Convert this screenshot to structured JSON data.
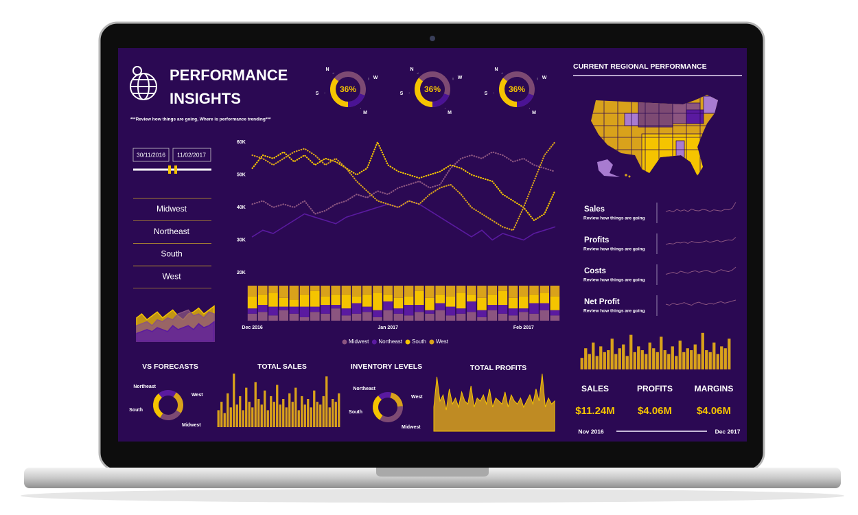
{
  "header": {
    "title_line1": "PERFORMANCE",
    "title_line2": "INSIGHTS",
    "subtitle": "***Review how things are going, Where is performance trending***"
  },
  "gauges": [
    {
      "label": "36%",
      "value": 36,
      "n": "N",
      "w": "W",
      "s": "S",
      "m": "M"
    },
    {
      "label": "36%",
      "value": 36,
      "n": "N",
      "w": "W",
      "s": "S",
      "m": "M"
    },
    {
      "label": "36%",
      "value": 36,
      "n": "N",
      "w": "W",
      "s": "S",
      "m": "M"
    }
  ],
  "date_range": {
    "start": "30/11/2016",
    "end": "11/02/2017"
  },
  "regions": [
    "Midwest",
    "Northeast",
    "South",
    "West"
  ],
  "mini_area": {
    "ylim": [
      0,
      100
    ],
    "series": [
      {
        "color": "#f5c400",
        "values": [
          60,
          70,
          55,
          65,
          75,
          60,
          70,
          80,
          65,
          55,
          70,
          75,
          85,
          70,
          80,
          90
        ]
      },
      {
        "color": "#8b5580",
        "values": [
          40,
          45,
          50,
          40,
          55,
          50,
          60,
          55,
          70,
          75,
          80,
          65,
          70,
          60,
          75,
          70
        ]
      },
      {
        "color": "#5a1aa0",
        "values": [
          20,
          25,
          30,
          25,
          35,
          30,
          25,
          40,
          30,
          35,
          40,
          30,
          45,
          35,
          40,
          50
        ]
      }
    ]
  },
  "trend_chart": {
    "type": "line",
    "categories": [
      "Dec 2016",
      null,
      null,
      null,
      null,
      null,
      null,
      null,
      null,
      null,
      null,
      null,
      null,
      "Jan 2017",
      null,
      null,
      null,
      null,
      null,
      null,
      null,
      null,
      null,
      null,
      null,
      null,
      "Feb 2017",
      null,
      null,
      null
    ],
    "ylim": [
      20000,
      60000
    ],
    "yticks": [
      {
        "value": 20000,
        "label": "20K"
      },
      {
        "value": 30000,
        "label": "30K"
      },
      {
        "value": 40000,
        "label": "40K"
      },
      {
        "value": 50000,
        "label": "50K"
      },
      {
        "value": 60000,
        "label": "60K"
      }
    ],
    "bar_ylim": [
      0,
      100
    ],
    "series": [
      {
        "name": "Midwest",
        "color": "#8b5580",
        "style": "dotted",
        "values": [
          41000,
          42000,
          40000,
          41000,
          40000,
          42000,
          38000,
          39000,
          41000,
          42000,
          44000,
          43000,
          45000,
          44000,
          46000,
          47000,
          48000,
          46000,
          47000,
          52000,
          55000,
          56000,
          55000,
          57000,
          56000,
          54000,
          55000,
          53000,
          52000,
          51000
        ],
        "share": [
          20,
          25,
          15,
          30,
          20,
          10,
          25,
          20,
          35,
          15,
          20,
          25,
          10,
          30,
          20,
          15,
          25,
          20,
          30,
          15,
          20,
          25,
          10,
          30,
          20,
          15,
          25,
          20,
          30,
          15
        ]
      },
      {
        "name": "Northeast",
        "color": "#5a1aa0",
        "style": "solid",
        "values": [
          31000,
          33000,
          32000,
          34000,
          36000,
          38000,
          37000,
          36000,
          35000,
          37000,
          38000,
          39000,
          40000,
          41000,
          40000,
          42000,
          41000,
          39000,
          37000,
          35000,
          33000,
          31000,
          33000,
          30000,
          32000,
          31000,
          30000,
          32000,
          33000,
          34000
        ],
        "share": [
          15,
          20,
          25,
          10,
          20,
          30,
          15,
          25,
          10,
          20,
          30,
          15,
          20,
          25,
          15,
          30,
          20,
          10,
          20,
          25,
          15,
          30,
          20,
          15,
          25,
          20,
          10,
          30,
          20,
          15
        ]
      },
      {
        "name": "South",
        "color": "#f5c400",
        "style": "dotted",
        "values": [
          52000,
          56000,
          55000,
          57000,
          54000,
          56000,
          53000,
          55000,
          54000,
          52000,
          50000,
          52000,
          60000,
          53000,
          51000,
          50000,
          49000,
          50000,
          51000,
          53000,
          52000,
          50000,
          49000,
          48000,
          44000,
          42000,
          40000,
          36000,
          38000,
          45000
        ],
        "share": [
          35,
          30,
          40,
          25,
          20,
          35,
          45,
          25,
          30,
          40,
          20,
          35,
          50,
          20,
          30,
          25,
          40,
          35,
          25,
          30,
          45,
          20,
          35,
          30,
          40,
          30,
          35,
          25,
          30,
          40
        ]
      },
      {
        "name": "West",
        "color": "#d9a21b",
        "style": "dotted",
        "values": [
          56000,
          55000,
          53000,
          55000,
          57000,
          58000,
          56000,
          53000,
          55000,
          52000,
          48000,
          45000,
          42000,
          41000,
          40000,
          42000,
          41000,
          44000,
          46000,
          47000,
          44000,
          40000,
          38000,
          36000,
          34000,
          33000,
          40000,
          48000,
          56000,
          60000
        ],
        "share": [
          30,
          25,
          20,
          35,
          40,
          25,
          15,
          30,
          25,
          25,
          30,
          25,
          20,
          25,
          35,
          30,
          15,
          35,
          25,
          30,
          20,
          25,
          35,
          25,
          15,
          35,
          30,
          25,
          20,
          30
        ]
      }
    ]
  },
  "vs_forecasts": {
    "title": "VS FORECASTS",
    "labels": [
      "Northeast",
      "West",
      "Midwest",
      "South"
    ],
    "values": [
      20,
      25,
      25,
      30
    ],
    "colors": [
      "#5a1aa0",
      "#d9a21b",
      "#7d4a73",
      "#f5c400"
    ]
  },
  "total_sales": {
    "title": "TOTAL SALES",
    "ylim": [
      0,
      100
    ],
    "color": "#d9a21b",
    "values": [
      30,
      45,
      25,
      60,
      35,
      95,
      40,
      55,
      30,
      70,
      45,
      35,
      80,
      50,
      40,
      65,
      30,
      55,
      45,
      75,
      40,
      50,
      35,
      60,
      45,
      70,
      30,
      55,
      40,
      50,
      35,
      65,
      45,
      40,
      55,
      90,
      35,
      50,
      45,
      60
    ]
  },
  "inventory_levels": {
    "title": "INVENTORY LEVELS",
    "labels": [
      "Northeast",
      "West",
      "Midwest",
      "South"
    ],
    "values": [
      15,
      20,
      35,
      30
    ],
    "colors": [
      "#5a1aa0",
      "#d9a21b",
      "#7d4a73",
      "#f5c400"
    ]
  },
  "total_profits": {
    "title": "TOTAL PROFITS",
    "ylim": [
      0,
      100
    ],
    "color": "#d9a21b",
    "values": [
      40,
      90,
      50,
      60,
      35,
      70,
      45,
      55,
      40,
      65,
      50,
      45,
      75,
      40,
      55,
      50,
      60,
      45,
      70,
      40,
      55,
      50,
      45,
      65,
      40,
      60,
      50,
      45,
      55,
      40,
      50,
      60,
      45,
      70,
      50,
      95,
      40,
      55,
      45,
      50
    ]
  },
  "regional": {
    "title": "CURRENT REGIONAL PERFORMANCE"
  },
  "metrics": [
    {
      "title": "Sales",
      "caption": "Review how things are going",
      "ylim": [
        0,
        100
      ],
      "values": [
        50,
        55,
        48,
        60,
        52,
        58,
        50,
        62,
        55,
        53,
        60,
        57,
        50,
        58,
        55,
        52,
        60,
        58,
        65,
        95
      ]
    },
    {
      "title": "Profits",
      "caption": "Review how things are going",
      "ylim": [
        0,
        100
      ],
      "values": [
        40,
        45,
        42,
        50,
        47,
        52,
        45,
        55,
        50,
        48,
        52,
        58,
        50,
        55,
        60,
        52,
        58,
        62,
        60,
        75
      ]
    },
    {
      "title": "Costs",
      "caption": "Review how things are going",
      "ylim": [
        0,
        100
      ],
      "values": [
        45,
        50,
        55,
        48,
        60,
        55,
        50,
        58,
        62,
        55,
        60,
        65,
        58,
        52,
        60,
        68,
        62,
        58,
        65,
        80
      ]
    },
    {
      "title": "Net Profit",
      "caption": "Review how things are going",
      "ylim": [
        0,
        100
      ],
      "values": [
        50,
        45,
        55,
        48,
        52,
        58,
        50,
        45,
        55,
        60,
        52,
        48,
        55,
        50,
        58,
        62,
        55,
        60,
        65,
        70
      ]
    }
  ],
  "regional_bars": {
    "ylim": [
      0,
      100
    ],
    "color": "#d9a21b",
    "values": [
      30,
      55,
      40,
      70,
      35,
      60,
      45,
      50,
      80,
      40,
      55,
      65,
      35,
      90,
      45,
      60,
      50,
      40,
      70,
      55,
      45,
      85,
      50,
      40,
      60,
      35,
      75,
      45,
      55,
      50,
      65,
      40,
      95,
      50,
      45,
      70,
      40,
      60,
      55,
      80
    ]
  },
  "kpis": [
    {
      "label": "SALES",
      "value": "$11.24M"
    },
    {
      "label": "PROFITS",
      "value": "$4.06M"
    },
    {
      "label": "MARGINS",
      "value": "$4.06M"
    }
  ],
  "period": {
    "start": "Nov 2016",
    "end": "Dec 2017"
  }
}
